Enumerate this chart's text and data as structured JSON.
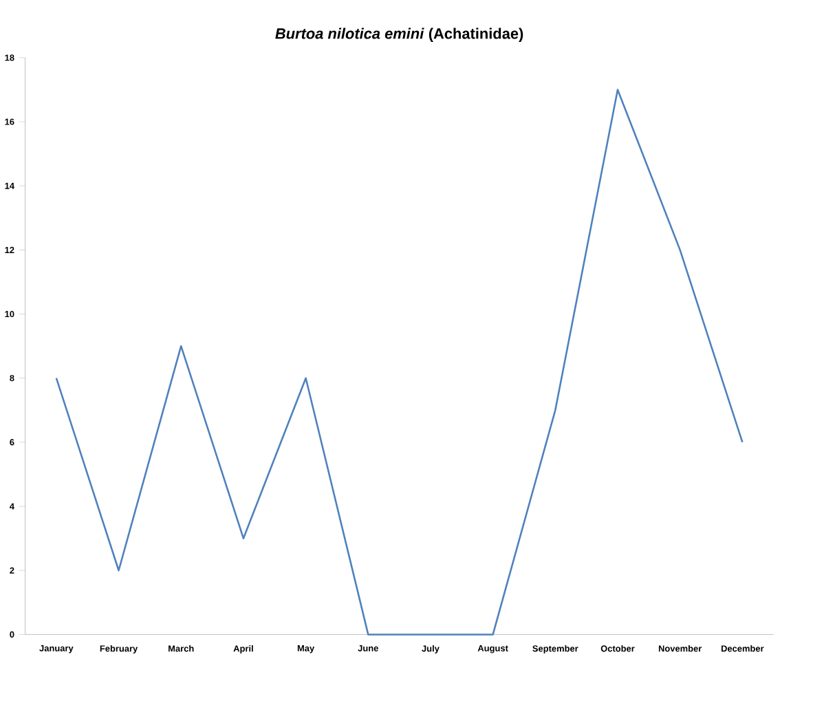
{
  "chart_data": {
    "type": "line",
    "title": "*Burtoa nilotica emini* (Achatinidae)",
    "categories": [
      "January",
      "February",
      "March",
      "April",
      "May",
      "June",
      "July",
      "August",
      "September",
      "October",
      "November",
      "December"
    ],
    "series": [
      {
        "color": "#4f81bd",
        "values": [
          8,
          2,
          9,
          3,
          8,
          0,
          0,
          0,
          7,
          17,
          12,
          6
        ]
      }
    ],
    "ylim": [
      0,
      18
    ],
    "yticks": [
      0,
      2,
      4,
      6,
      8,
      10,
      12,
      14,
      16,
      18
    ],
    "grid": false,
    "legend": false,
    "marker": "none",
    "line_style": "solid"
  }
}
